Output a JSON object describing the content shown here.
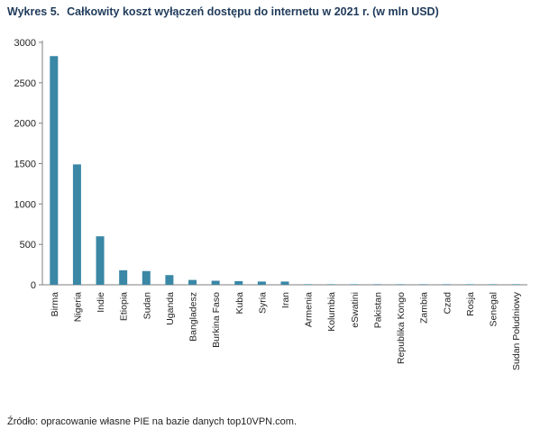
{
  "title": {
    "number": "Wykres 5.",
    "text": "Całkowity koszt wyłączeń dostępu do internetu w 2021 r. (w mln USD)"
  },
  "source": "Źródło: opracowanie własne PIE na bazie danych top10VPN.com.",
  "colors": {
    "bar": "#3a87a6",
    "axis": "#7f7f7f"
  },
  "chart_data": {
    "type": "bar",
    "categories": [
      "Birma",
      "Nigeria",
      "Indie",
      "Etiopia",
      "Sudan",
      "Uganda",
      "Bangladesz",
      "Burkina Faso",
      "Kuba",
      "Syria",
      "Iran",
      "Armenia",
      "Kolumbia",
      "eSwatini",
      "Pakistan",
      "Republika Kongo",
      "Zambia",
      "Czad",
      "Rosja",
      "Senegal",
      "Sudan Południowy"
    ],
    "values": [
      2830,
      1490,
      600,
      180,
      170,
      120,
      60,
      50,
      45,
      40,
      40,
      6,
      5,
      4,
      3,
      3,
      2,
      2,
      2,
      2,
      1
    ],
    "yticks": [
      0,
      500,
      1000,
      1500,
      2000,
      2500,
      3000
    ],
    "ylim": [
      0,
      3000
    ],
    "xlabel": "",
    "ylabel": "",
    "grid": false,
    "legend": "none"
  }
}
